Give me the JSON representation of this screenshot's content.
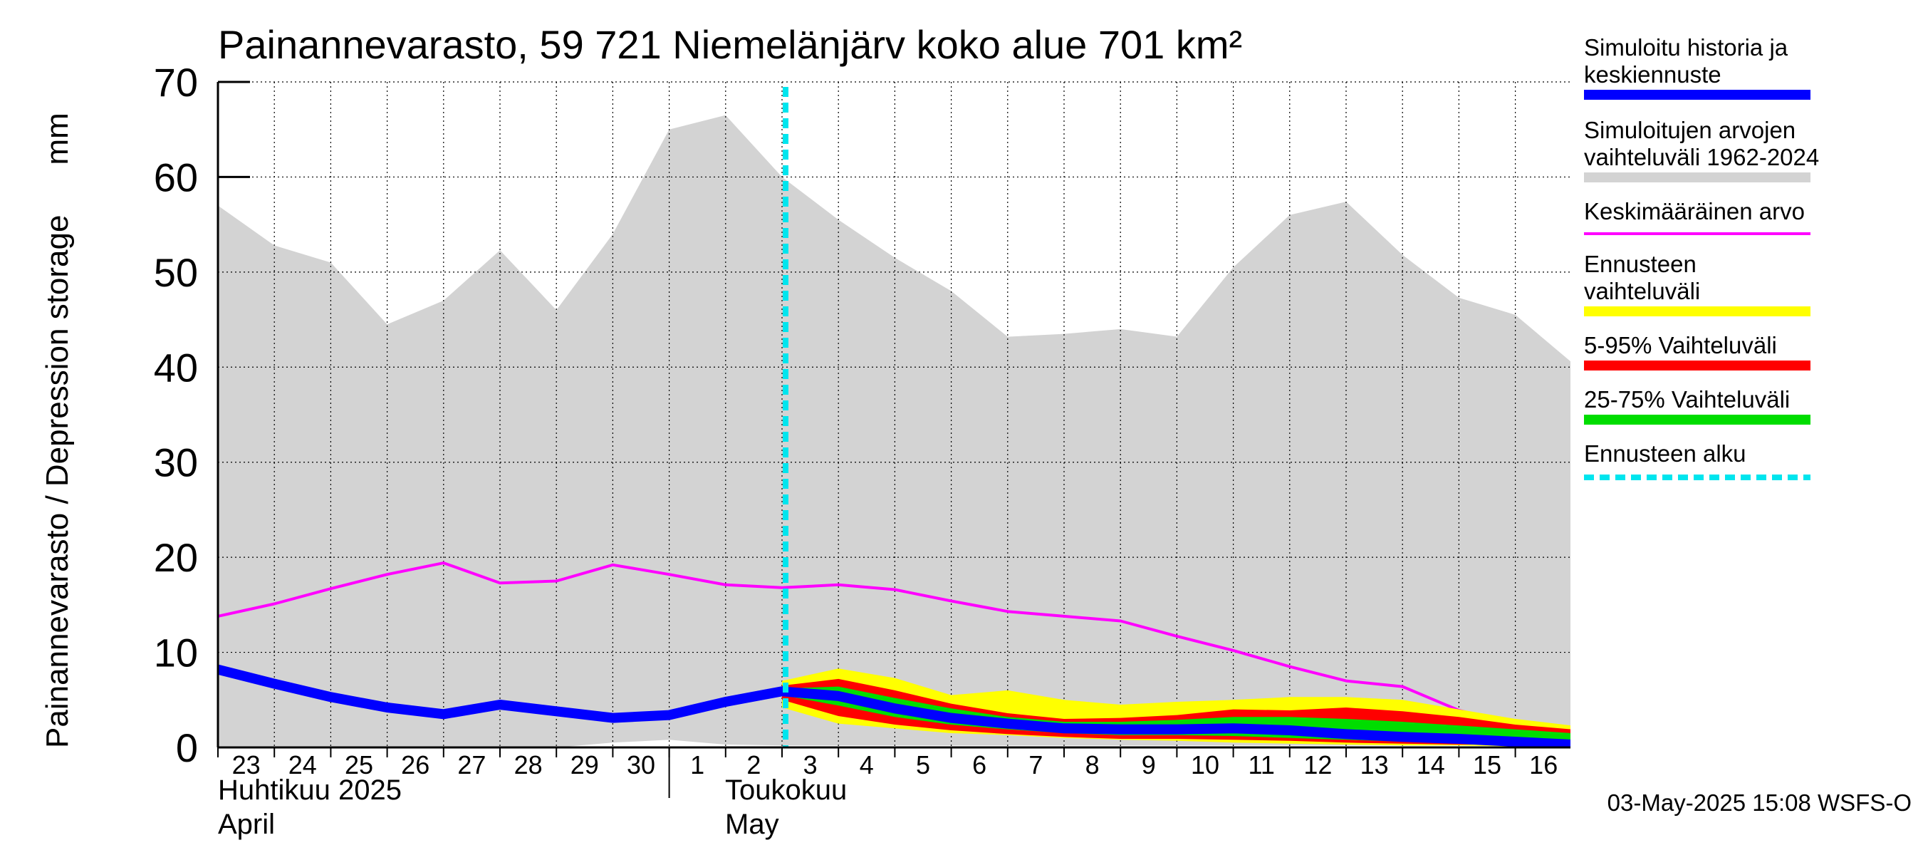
{
  "title": "Painannevarasto, 59 721 Niemelänjärv koko alue 701 km²",
  "y_axis_label": "Painannevarasto / Depression storage",
  "y_axis_unit": "mm",
  "month_labels": {
    "april_fi": "Huhtikuu  2025",
    "april_en": "April",
    "may_fi": "Toukokuu",
    "may_en": "May"
  },
  "footer": "03-May-2025 15:08 WSFS-O",
  "colors": {
    "history_range": "#d3d3d3",
    "mean": "#ff00ff",
    "forecast_range": "#ffff00",
    "p5_95": "#ff0000",
    "p25_75": "#00dd00",
    "simulated": "#0000ff",
    "forecast_start": "#00e5ee"
  },
  "legend": [
    {
      "label": "Simuloitu historia ja keskiennuste",
      "color": "#0000ff",
      "style": "thick"
    },
    {
      "label": "Simuloitujen arvojen vaihteluväli 1962-2024",
      "color": "#d3d3d3",
      "style": "thick"
    },
    {
      "label": "Keskimääräinen arvo",
      "color": "#ff00ff",
      "style": "thin"
    },
    {
      "label": "Ennusteen vaihteluväli",
      "color": "#ffff00",
      "style": "thick"
    },
    {
      "label": "5-95% Vaihteluväli",
      "color": "#ff0000",
      "style": "thick"
    },
    {
      "label": "25-75% Vaihteluväli",
      "color": "#00dd00",
      "style": "thick"
    },
    {
      "label": "Ennusteen alku",
      "color": "#00e5ee",
      "style": "dashed"
    }
  ],
  "chart_data": {
    "type": "area",
    "title": "Painannevarasto, 59 721 Niemelänjärv koko alue 701 km²",
    "ylabel": "Painannevarasto / Depression storage    mm",
    "ylim": [
      0,
      70
    ],
    "yticks": [
      0,
      10,
      20,
      30,
      40,
      50,
      60,
      70
    ],
    "xlim": [
      "2025-04-23",
      "2025-05-17"
    ],
    "x_tick_labels": [
      "23",
      "24",
      "25",
      "26",
      "27",
      "28",
      "29",
      "30",
      "1",
      "2",
      "3",
      "4",
      "5",
      "6",
      "7",
      "8",
      "9",
      "10",
      "11",
      "12",
      "13",
      "14",
      "15",
      "16"
    ],
    "grid": true,
    "forecast_start": "2025-05-03",
    "series": [
      {
        "name": "Simuloitujen arvojen vaihteluväli 1962-2024",
        "kind": "band",
        "x": [
          "2025-04-23",
          "2025-04-24",
          "2025-04-25",
          "2025-04-26",
          "2025-04-27",
          "2025-04-28",
          "2025-04-29",
          "2025-04-30",
          "2025-05-01",
          "2025-05-02",
          "2025-05-03",
          "2025-05-04",
          "2025-05-05",
          "2025-05-06",
          "2025-05-07",
          "2025-05-08",
          "2025-05-09",
          "2025-05-10",
          "2025-05-11",
          "2025-05-12",
          "2025-05-13",
          "2025-05-14",
          "2025-05-15",
          "2025-05-16",
          "2025-05-17"
        ],
        "upper": [
          57,
          52.8,
          51,
          44.5,
          47,
          52.3,
          46,
          54,
          65,
          66.5,
          60,
          55.5,
          51.5,
          48,
          43.2,
          43.5,
          44,
          43.2,
          50.5,
          56,
          57.4,
          51.8,
          47.3,
          45.5,
          40.5
        ],
        "lower": [
          0,
          0,
          0,
          0,
          0,
          0,
          0,
          0.5,
          0.8,
          0.3,
          0.2,
          0.2,
          0.2,
          0.2,
          0.2,
          0.2,
          0.2,
          0.2,
          0.2,
          0.2,
          0.2,
          0.2,
          0.2,
          0.2,
          0.2
        ]
      },
      {
        "name": "Keskimääräinen arvo",
        "kind": "line",
        "x": [
          "2025-04-23",
          "2025-04-24",
          "2025-04-25",
          "2025-04-26",
          "2025-04-27",
          "2025-04-28",
          "2025-04-29",
          "2025-04-30",
          "2025-05-01",
          "2025-05-02",
          "2025-05-03",
          "2025-05-04",
          "2025-05-05",
          "2025-05-06",
          "2025-05-07",
          "2025-05-08",
          "2025-05-09",
          "2025-05-10",
          "2025-05-11",
          "2025-05-12",
          "2025-05-13",
          "2025-05-14",
          "2025-05-15",
          "2025-05-16",
          "2025-05-17"
        ],
        "values": [
          13.8,
          15.1,
          16.7,
          18.2,
          19.4,
          17.3,
          17.5,
          19.2,
          18.2,
          17.1,
          16.8,
          17.1,
          16.6,
          15.4,
          14.3,
          13.8,
          13.3,
          11.7,
          10.2,
          8.5,
          7.0,
          6.4,
          3.9,
          2.4,
          1.6
        ]
      },
      {
        "name": "Ennusteen vaihteluväli",
        "kind": "band",
        "x": [
          "2025-05-03",
          "2025-05-04",
          "2025-05-05",
          "2025-05-06",
          "2025-05-07",
          "2025-05-08",
          "2025-05-09",
          "2025-05-10",
          "2025-05-11",
          "2025-05-12",
          "2025-05-13",
          "2025-05-14",
          "2025-05-15",
          "2025-05-16",
          "2025-05-17"
        ],
        "upper": [
          7.0,
          8.3,
          7.3,
          5.5,
          6.0,
          5.0,
          4.5,
          4.8,
          5.0,
          5.3,
          5.3,
          5.0,
          4.0,
          3.0,
          2.3
        ],
        "lower": [
          4.2,
          2.5,
          2.0,
          1.5,
          1.3,
          1.0,
          0.8,
          0.7,
          0.5,
          0.4,
          0.3,
          0.2,
          0.2,
          0.1,
          0.1
        ]
      },
      {
        "name": "5-95% Vaihteluväli",
        "kind": "band",
        "x": [
          "2025-05-03",
          "2025-05-04",
          "2025-05-05",
          "2025-05-06",
          "2025-05-07",
          "2025-05-08",
          "2025-05-09",
          "2025-05-10",
          "2025-05-11",
          "2025-05-12",
          "2025-05-13",
          "2025-05-14",
          "2025-05-15",
          "2025-05-16",
          "2025-05-17"
        ],
        "upper": [
          6.5,
          7.2,
          6.0,
          4.6,
          3.6,
          3.0,
          3.1,
          3.4,
          4.0,
          3.9,
          4.2,
          3.8,
          3.2,
          2.4,
          1.9
        ],
        "lower": [
          5.0,
          3.3,
          2.4,
          1.8,
          1.4,
          1.1,
          0.9,
          0.9,
          0.8,
          0.7,
          0.5,
          0.4,
          0.3,
          0.3,
          0.2
        ]
      },
      {
        "name": "25-75% Vaihteluväli",
        "kind": "band",
        "x": [
          "2025-05-03",
          "2025-05-04",
          "2025-05-05",
          "2025-05-06",
          "2025-05-07",
          "2025-05-08",
          "2025-05-09",
          "2025-05-10",
          "2025-05-11",
          "2025-05-12",
          "2025-05-13",
          "2025-05-14",
          "2025-05-15",
          "2025-05-16",
          "2025-05-17"
        ],
        "upper": [
          6.2,
          6.4,
          5.2,
          4.1,
          3.2,
          2.7,
          2.7,
          2.9,
          3.2,
          3.2,
          3.0,
          2.7,
          2.3,
          1.9,
          1.5
        ],
        "lower": [
          5.5,
          4.4,
          3.2,
          2.4,
          1.9,
          1.5,
          1.3,
          1.3,
          1.2,
          1.0,
          0.8,
          0.6,
          0.5,
          0.4,
          0.3
        ]
      },
      {
        "name": "Simuloitu historia ja keskiennuste",
        "kind": "line",
        "x": [
          "2025-04-23",
          "2025-04-24",
          "2025-04-25",
          "2025-04-26",
          "2025-04-27",
          "2025-04-28",
          "2025-04-29",
          "2025-04-30",
          "2025-05-01",
          "2025-05-02",
          "2025-05-03",
          "2025-05-04",
          "2025-05-05",
          "2025-05-06",
          "2025-05-07",
          "2025-05-08",
          "2025-05-09",
          "2025-05-10",
          "2025-05-11",
          "2025-05-12",
          "2025-05-13",
          "2025-05-14",
          "2025-05-15",
          "2025-05-16",
          "2025-05-17"
        ],
        "values": [
          8.2,
          6.7,
          5.3,
          4.2,
          3.5,
          4.5,
          3.8,
          3.1,
          3.4,
          4.8,
          5.9,
          5.4,
          4.1,
          3.1,
          2.5,
          2.0,
          1.9,
          1.9,
          2.0,
          1.8,
          1.4,
          1.1,
          0.9,
          0.6,
          0.3
        ]
      }
    ]
  }
}
